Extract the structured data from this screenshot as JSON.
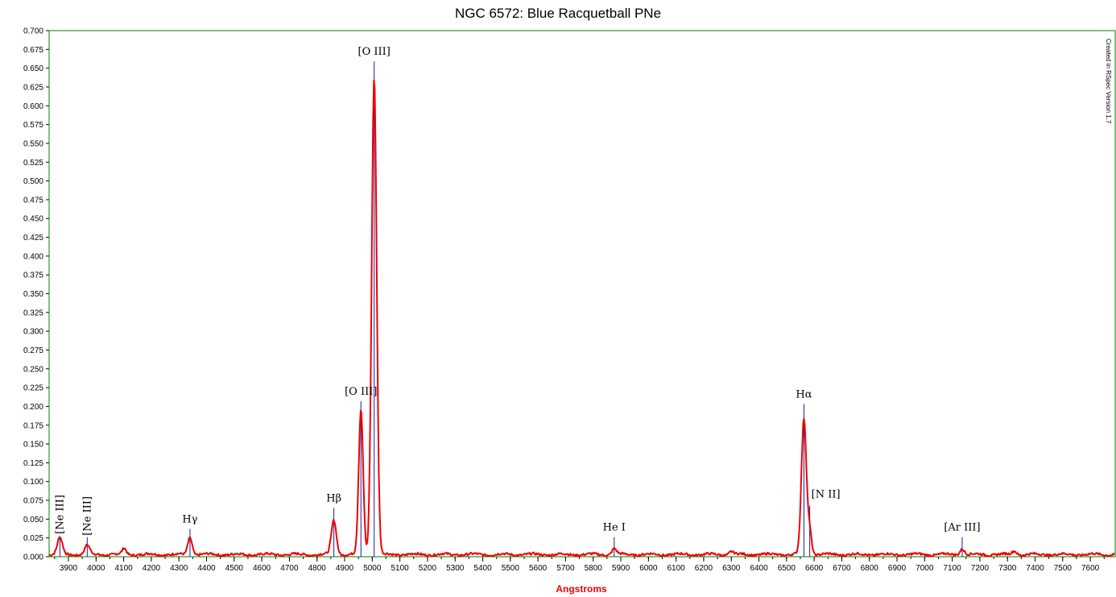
{
  "chart_data": {
    "type": "line",
    "title": "NGC 6572: Blue Racquetball PNe",
    "xlabel": "Angstroms",
    "ylabel": "",
    "xlim": [
      3830,
      7690
    ],
    "ylim": [
      0,
      0.7
    ],
    "x_ticks": [
      3900,
      4000,
      4100,
      4200,
      4300,
      4400,
      4500,
      4600,
      4700,
      4800,
      4900,
      5000,
      5100,
      5200,
      5300,
      5400,
      5500,
      5600,
      5700,
      5800,
      5900,
      6000,
      6100,
      6200,
      6300,
      6400,
      6500,
      6600,
      6700,
      6800,
      6900,
      7000,
      7100,
      7200,
      7300,
      7400,
      7500,
      7600
    ],
    "y_ticks": [
      "0.000",
      "0.025",
      "0.050",
      "0.075",
      "0.100",
      "0.125",
      "0.150",
      "0.175",
      "0.200",
      "0.225",
      "0.250",
      "0.275",
      "0.300",
      "0.325",
      "0.350",
      "0.375",
      "0.400",
      "0.425",
      "0.450",
      "0.475",
      "0.500",
      "0.525",
      "0.550",
      "0.575",
      "0.600",
      "0.625",
      "0.650",
      "0.675",
      "0.700"
    ],
    "grid": false,
    "series": [
      {
        "baseline": 0.003,
        "peaks": [
          {
            "center": 3869,
            "amp": 0.022,
            "sigma": 9
          },
          {
            "center": 3968,
            "amp": 0.012,
            "sigma": 9
          },
          {
            "center": 4102,
            "amp": 0.008,
            "sigma": 7
          },
          {
            "center": 4340,
            "amp": 0.023,
            "sigma": 8
          },
          {
            "center": 4861,
            "amp": 0.046,
            "sigma": 9
          },
          {
            "center": 4959,
            "amp": 0.193,
            "sigma": 8
          },
          {
            "center": 5007,
            "amp": 0.637,
            "sigma": 9
          },
          {
            "center": 5876,
            "amp": 0.008,
            "sigma": 8
          },
          {
            "center": 6300,
            "amp": 0.004,
            "sigma": 8
          },
          {
            "center": 6563,
            "amp": 0.181,
            "sigma": 9
          },
          {
            "center": 6584,
            "amp": 0.03,
            "sigma": 7
          },
          {
            "center": 7136,
            "amp": 0.008,
            "sigma": 8
          },
          {
            "center": 7325,
            "amp": 0.005,
            "sigma": 8
          }
        ]
      }
    ],
    "annotations": [
      {
        "label": "[Ne III]",
        "x": 3869,
        "line_top": 0.028,
        "orientation": "vertical"
      },
      {
        "label": "[Ne III]",
        "x": 3968,
        "line_top": 0.026,
        "orientation": "vertical"
      },
      {
        "label": "Hγ",
        "x": 4340,
        "line_top": 0.037,
        "orientation": "horizontal"
      },
      {
        "label": "Hβ",
        "x": 4861,
        "line_top": 0.065,
        "orientation": "horizontal"
      },
      {
        "label": "[O III]",
        "x": 4959,
        "line_top": 0.207,
        "orientation": "horizontal"
      },
      {
        "label": "[O III]",
        "x": 5007,
        "line_top": 0.659,
        "orientation": "horizontal"
      },
      {
        "label": "He I",
        "x": 5876,
        "line_top": 0.026,
        "orientation": "horizontal"
      },
      {
        "label": "Hα",
        "x": 6563,
        "line_top": 0.203,
        "orientation": "horizontal"
      },
      {
        "label": "[N II]",
        "x": 6584,
        "line_top": 0.068,
        "orientation": "horizontal"
      },
      {
        "label": "[Ar III]",
        "x": 7136,
        "line_top": 0.026,
        "orientation": "horizontal"
      }
    ],
    "credit": "Created in RSpec Version 1.7"
  },
  "colors": {
    "spectrum": "#ee0000",
    "marker_line": "#1a1aa8",
    "plot_border": "#008000",
    "xlabel": "#ee0000"
  }
}
